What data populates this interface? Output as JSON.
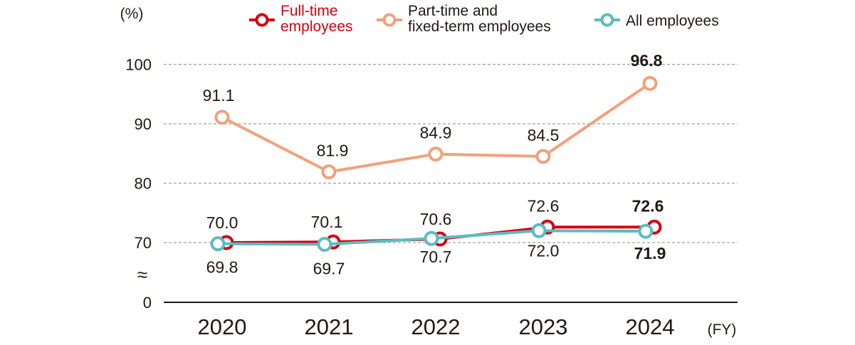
{
  "chart_data": {
    "type": "line",
    "y_unit_label": "(%)",
    "x_unit_label": "(FY)",
    "categories": [
      "2020",
      "2021",
      "2022",
      "2023",
      "2024"
    ],
    "y_ticks": [
      "100",
      "90",
      "80",
      "70",
      "0"
    ],
    "axis_break_symbol": "≈",
    "ylim": [
      0,
      100
    ],
    "y_axis_broken_between": [
      0,
      70
    ],
    "grid": "dashed horizontal",
    "legend_position": "top",
    "series": [
      {
        "name": "Full-time employees",
        "legend_lines": [
          "Full-time",
          "employees"
        ],
        "color": "#d7000f",
        "values": [
          70.0,
          70.1,
          70.6,
          72.6,
          72.6
        ],
        "labels": [
          "70.0",
          "70.1",
          "70.6",
          "72.6",
          "72.6"
        ],
        "bold_last_label": true
      },
      {
        "name": "Part-time and fixed-term employees",
        "legend_lines": [
          "Part-time and",
          "fixed-term employees"
        ],
        "color": "#f0a27a",
        "values": [
          91.1,
          81.9,
          84.9,
          84.5,
          96.8
        ],
        "labels": [
          "91.1",
          "81.9",
          "84.9",
          "84.5",
          "96.8"
        ],
        "bold_last_label": true
      },
      {
        "name": "All employees",
        "legend_lines": [
          "All employees"
        ],
        "color": "#5bbcc2",
        "values": [
          69.8,
          69.7,
          70.7,
          72.0,
          71.9
        ],
        "labels": [
          "69.8",
          "69.7",
          "70.7",
          "72.0",
          "71.9"
        ],
        "bold_last_label": true
      }
    ]
  }
}
